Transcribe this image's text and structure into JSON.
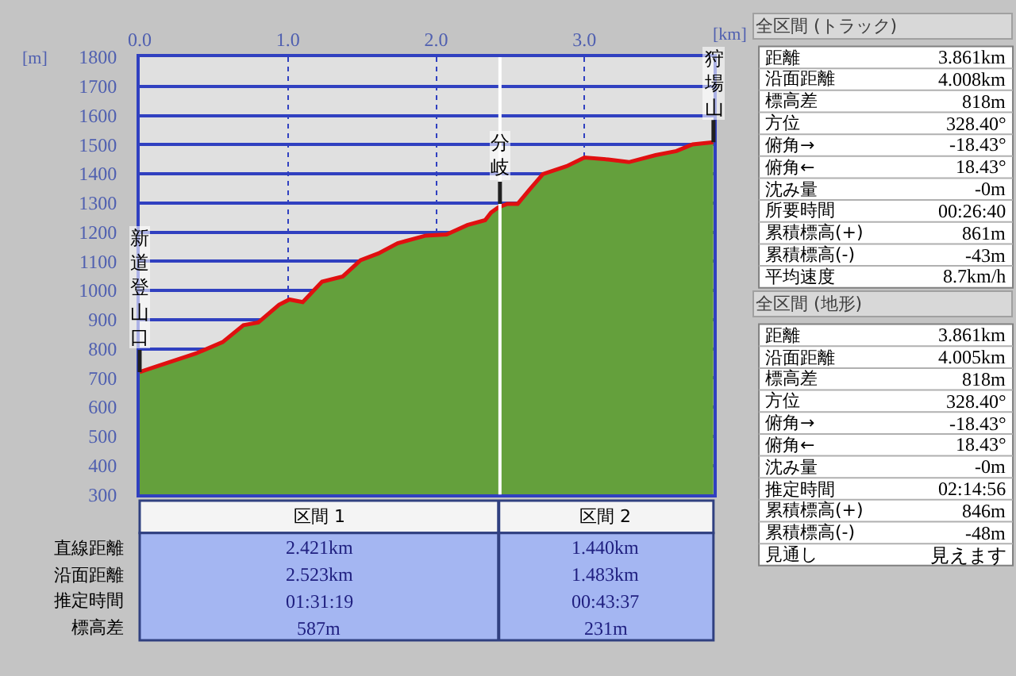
{
  "chart_data": [
    {
      "type": "area",
      "xlabel": "[km]",
      "ylabel": "[m]",
      "x": [
        0,
        0.1,
        0.38,
        0.56,
        0.7,
        0.8,
        0.94,
        1.01,
        1.1,
        1.23,
        1.37,
        1.49,
        1.61,
        1.74,
        1.93,
        2.07,
        2.21,
        2.33,
        2.37,
        2.42,
        2.48,
        2.55,
        2.63,
        2.72,
        2.88,
        3.0,
        3.16,
        3.3,
        3.48,
        3.62,
        3.73,
        3.87
      ],
      "series": [
        {
          "type": "area",
          "color": "#64a03c",
          "values": [
            720,
            737,
            784,
            823,
            881,
            890,
            951,
            969,
            960,
            1030,
            1048,
            1104,
            1127,
            1162,
            1188,
            1192,
            1224,
            1241,
            1267,
            1285,
            1297,
            1297,
            1346,
            1399,
            1426,
            1456,
            1449,
            1440,
            1464,
            1478,
            1501,
            1508
          ]
        },
        {
          "type": "line",
          "color": "#e01010",
          "values": [
            720,
            737,
            784,
            823,
            881,
            890,
            951,
            969,
            960,
            1030,
            1048,
            1104,
            1127,
            1162,
            1188,
            1192,
            1224,
            1241,
            1267,
            1285,
            1297,
            1297,
            1346,
            1399,
            1426,
            1456,
            1449,
            1440,
            1464,
            1478,
            1501,
            1508
          ]
        }
      ],
      "xlim": [
        0,
        3.87
      ],
      "xticks": [
        {
          "value": 0,
          "label": "0.0"
        },
        {
          "value": 1,
          "label": "1.0"
        },
        {
          "value": 2,
          "label": "2.0"
        },
        {
          "value": 3,
          "label": "3.0"
        }
      ],
      "ylim": [
        300,
        1800
      ],
      "yticks": [
        300,
        400,
        500,
        600,
        700,
        800,
        900,
        1000,
        1100,
        1200,
        1300,
        1400,
        1500,
        1600,
        1700,
        1800
      ],
      "grid": true,
      "ref_lines": [
        {
          "axis": "x",
          "value": 2.43,
          "color": "#ffffff"
        }
      ],
      "annotations": [
        {
          "text": "新道登山口",
          "x": 0,
          "y": 720
        },
        {
          "text": "分岐",
          "x": 2.43,
          "y": 1297
        },
        {
          "text": "狩場山",
          "x": 3.87,
          "y": 1508
        }
      ]
    },
    {
      "type": "other",
      "annotations": [
        "区間 1",
        "区間 2",
        "直線距離",
        "2.421km",
        "1.440km",
        "沿面距離",
        "2.523km",
        "1.483km",
        "推定時間",
        "01:31:19",
        "00:43:37",
        "標高差",
        "587m",
        "231m"
      ]
    },
    {
      "type": "other",
      "title": "全区間 (トラック)",
      "annotations": [
        "距離",
        "3.861km",
        "沿面距離",
        "4.008km",
        "標高差",
        "818m",
        "方位",
        "328.40°",
        "俯角→",
        "-18.43°",
        "俯角←",
        "18.43°",
        "沈み量",
        "-0m",
        "所要時間",
        "00:26:40",
        "累積標高(+)",
        "861m",
        "累積標高(-)",
        "-43m",
        "平均速度",
        "8.7km/h"
      ]
    },
    {
      "type": "other",
      "title": "全区間 (地形)",
      "annotations": [
        "距離",
        "3.861km",
        "沿面距離",
        "4.005km",
        "標高差",
        "818m",
        "方位",
        "328.40°",
        "俯角→",
        "-18.43°",
        "俯角←",
        "18.43°",
        "沈み量",
        "-0m",
        "推定時間",
        "02:14:56",
        "累積標高(+)",
        "846m",
        "累積標高(-)",
        "-48m",
        "見通し",
        "見えます"
      ]
    }
  ]
}
